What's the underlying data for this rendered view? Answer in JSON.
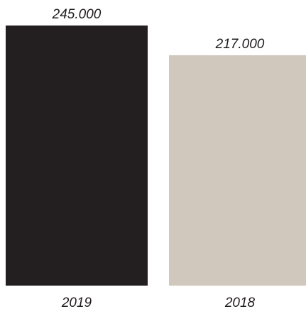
{
  "chart_data": {
    "type": "bar",
    "categories": [
      "2019",
      "2018"
    ],
    "values": [
      245000,
      217000
    ],
    "data_labels": [
      "245.000",
      "217.000"
    ],
    "ylim": [
      0,
      245000
    ],
    "grid": false,
    "colors": [
      "#231f20",
      "#d0c8bd"
    ]
  }
}
